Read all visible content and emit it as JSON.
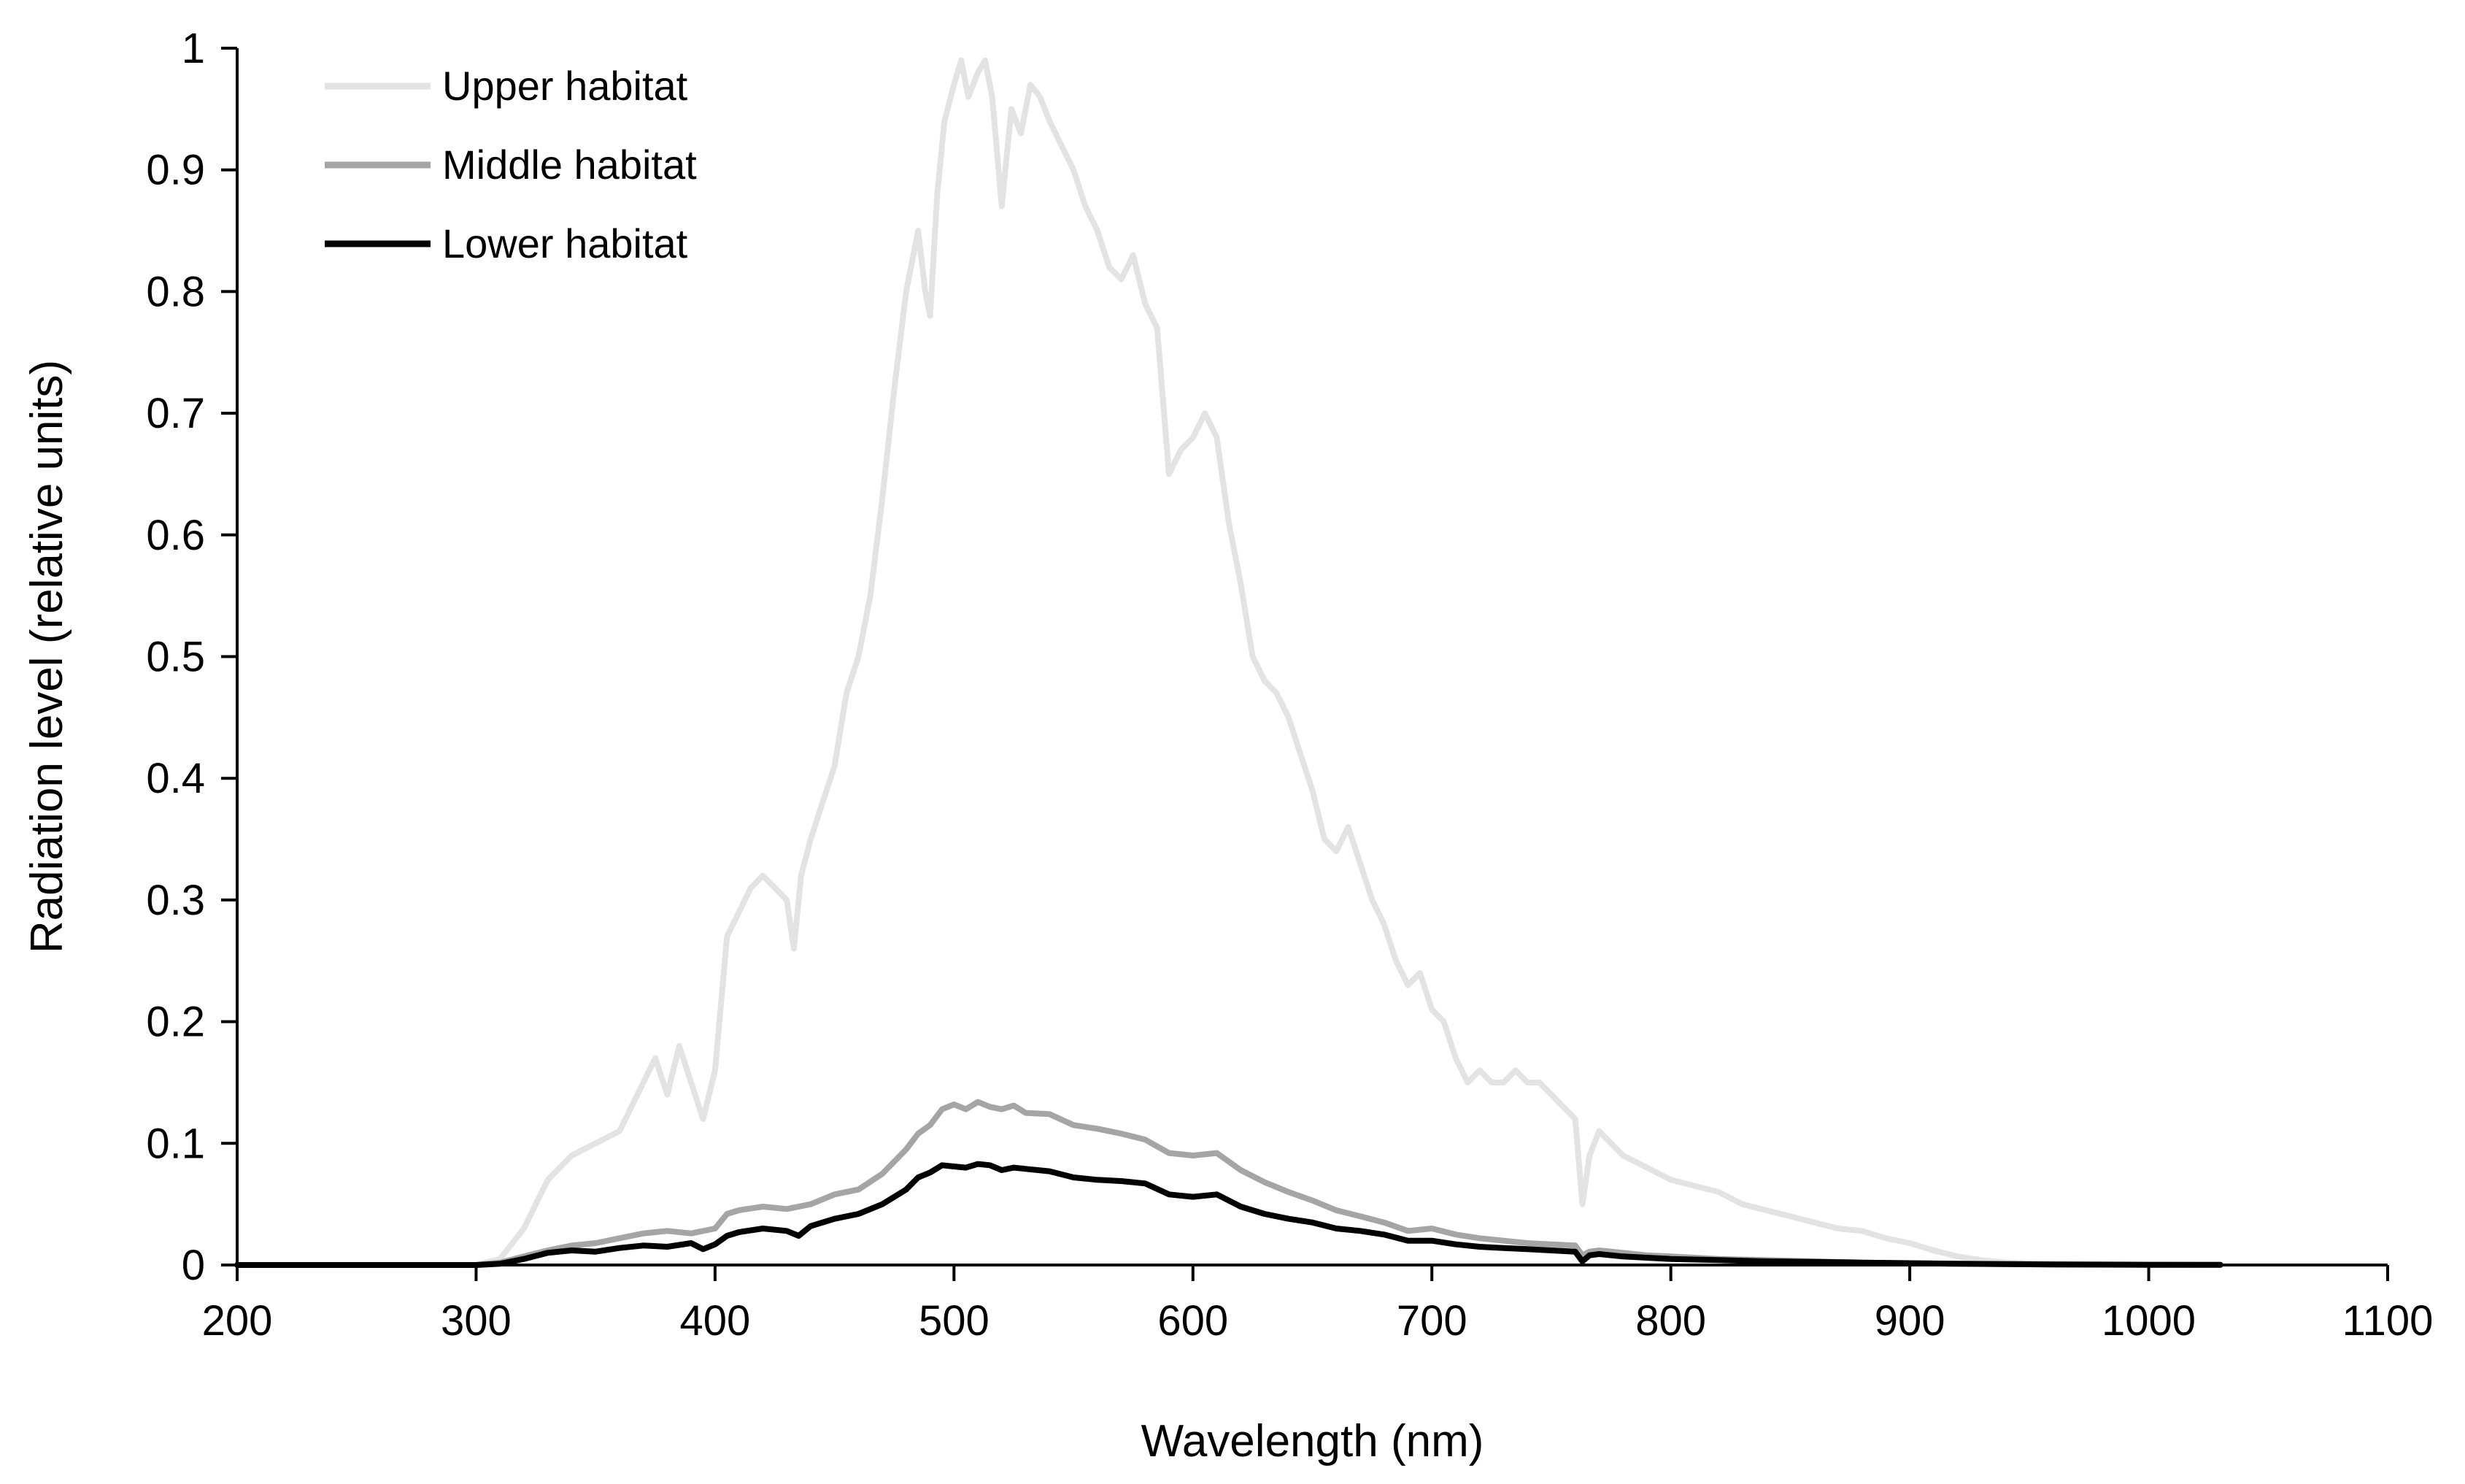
{
  "chart_data": {
    "type": "line",
    "title": "",
    "xlabel": "Wavelength (nm)",
    "ylabel": "Radiation level (relative units)",
    "xlim": [
      200,
      1100
    ],
    "ylim": [
      0,
      1
    ],
    "x_ticks": [
      200,
      300,
      400,
      500,
      600,
      700,
      800,
      900,
      1000,
      1100
    ],
    "y_ticks": [
      0,
      0.1,
      0.2,
      0.3,
      0.4,
      0.5,
      0.6,
      0.7,
      0.8,
      0.9,
      1
    ],
    "x_tick_labels": [
      "200",
      "300",
      "400",
      "500",
      "600",
      "700",
      "800",
      "900",
      "1000",
      "1100"
    ],
    "y_tick_labels": [
      "0",
      "0.1",
      "0.2",
      "0.3",
      "0.4",
      "0.5",
      "0.6",
      "0.7",
      "0.8",
      "0.9",
      "1"
    ],
    "grid": false,
    "legend_position": "top-left",
    "series": [
      {
        "name": "Upper habitat",
        "color": "#e3e3e3",
        "x": [
          200,
          300,
          310,
          320,
          330,
          340,
          350,
          360,
          370,
          375,
          380,
          385,
          390,
          395,
          400,
          405,
          410,
          415,
          420,
          425,
          430,
          433,
          436,
          440,
          445,
          450,
          455,
          460,
          465,
          470,
          475,
          480,
          485,
          488,
          490,
          493,
          496,
          500,
          503,
          506,
          510,
          513,
          516,
          520,
          524,
          528,
          532,
          536,
          540,
          545,
          550,
          555,
          560,
          565,
          570,
          575,
          580,
          585,
          590,
          595,
          600,
          605,
          610,
          615,
          620,
          625,
          630,
          635,
          640,
          645,
          650,
          655,
          660,
          665,
          670,
          675,
          680,
          685,
          690,
          695,
          700,
          705,
          710,
          715,
          720,
          725,
          730,
          735,
          740,
          745,
          750,
          755,
          760,
          763,
          766,
          770,
          775,
          780,
          790,
          800,
          810,
          820,
          830,
          840,
          850,
          860,
          870,
          880,
          890,
          900,
          910,
          920,
          930,
          940,
          960,
          1000,
          1030
        ],
        "y": [
          0,
          0,
          0.005,
          0.03,
          0.07,
          0.09,
          0.1,
          0.11,
          0.15,
          0.17,
          0.14,
          0.18,
          0.15,
          0.12,
          0.16,
          0.27,
          0.29,
          0.31,
          0.32,
          0.31,
          0.3,
          0.26,
          0.32,
          0.35,
          0.38,
          0.41,
          0.47,
          0.5,
          0.55,
          0.63,
          0.72,
          0.8,
          0.85,
          0.8,
          0.78,
          0.88,
          0.94,
          0.97,
          0.99,
          0.96,
          0.98,
          0.99,
          0.96,
          0.87,
          0.95,
          0.93,
          0.97,
          0.96,
          0.94,
          0.92,
          0.9,
          0.87,
          0.85,
          0.82,
          0.81,
          0.83,
          0.79,
          0.77,
          0.65,
          0.67,
          0.68,
          0.7,
          0.68,
          0.61,
          0.56,
          0.5,
          0.48,
          0.47,
          0.45,
          0.42,
          0.39,
          0.35,
          0.34,
          0.36,
          0.33,
          0.3,
          0.28,
          0.25,
          0.23,
          0.24,
          0.21,
          0.2,
          0.17,
          0.15,
          0.16,
          0.15,
          0.15,
          0.16,
          0.15,
          0.15,
          0.14,
          0.13,
          0.12,
          0.05,
          0.09,
          0.11,
          0.1,
          0.09,
          0.08,
          0.07,
          0.065,
          0.06,
          0.05,
          0.045,
          0.04,
          0.035,
          0.03,
          0.028,
          0.022,
          0.018,
          0.012,
          0.007,
          0.004,
          0.002,
          0.001,
          0.0005,
          0.0003
        ]
      },
      {
        "name": "Middle habitat",
        "color": "#a5a5a5",
        "x": [
          200,
          300,
          310,
          320,
          330,
          340,
          350,
          360,
          370,
          380,
          390,
          400,
          405,
          410,
          420,
          430,
          440,
          450,
          460,
          470,
          480,
          485,
          490,
          495,
          500,
          505,
          510,
          515,
          520,
          525,
          530,
          540,
          550,
          560,
          570,
          580,
          590,
          600,
          610,
          620,
          630,
          640,
          650,
          660,
          670,
          680,
          690,
          700,
          710,
          720,
          730,
          740,
          750,
          760,
          763,
          766,
          770,
          780,
          790,
          800,
          820,
          840,
          860,
          880,
          900,
          920,
          940,
          960,
          1000,
          1030
        ],
        "y": [
          0,
          0,
          0.002,
          0.007,
          0.012,
          0.016,
          0.018,
          0.022,
          0.026,
          0.028,
          0.026,
          0.03,
          0.042,
          0.045,
          0.048,
          0.046,
          0.05,
          0.058,
          0.062,
          0.075,
          0.095,
          0.108,
          0.115,
          0.128,
          0.132,
          0.128,
          0.134,
          0.13,
          0.128,
          0.131,
          0.125,
          0.124,
          0.115,
          0.112,
          0.108,
          0.103,
          0.092,
          0.09,
          0.092,
          0.078,
          0.068,
          0.06,
          0.053,
          0.045,
          0.04,
          0.035,
          0.028,
          0.03,
          0.025,
          0.022,
          0.02,
          0.018,
          0.017,
          0.016,
          0.008,
          0.011,
          0.012,
          0.01,
          0.008,
          0.007,
          0.005,
          0.004,
          0.003,
          0.002,
          0.0015,
          0.001,
          0.0008,
          0.0005,
          0.0003,
          0.0002
        ]
      },
      {
        "name": "Lower habitat",
        "color": "#000000",
        "x": [
          200,
          300,
          310,
          320,
          330,
          340,
          350,
          360,
          370,
          380,
          390,
          395,
          400,
          405,
          410,
          420,
          430,
          435,
          440,
          450,
          460,
          470,
          480,
          485,
          490,
          495,
          500,
          505,
          510,
          515,
          520,
          525,
          530,
          540,
          550,
          560,
          570,
          580,
          590,
          600,
          610,
          620,
          630,
          640,
          650,
          660,
          670,
          680,
          690,
          700,
          710,
          720,
          730,
          740,
          750,
          760,
          763,
          766,
          770,
          780,
          790,
          800,
          820,
          840,
          860,
          880,
          900,
          920,
          940,
          960,
          1000,
          1030
        ],
        "y": [
          0,
          0,
          0.001,
          0.005,
          0.01,
          0.012,
          0.011,
          0.014,
          0.016,
          0.015,
          0.018,
          0.013,
          0.017,
          0.024,
          0.027,
          0.03,
          0.028,
          0.024,
          0.032,
          0.038,
          0.042,
          0.05,
          0.062,
          0.072,
          0.076,
          0.082,
          0.081,
          0.08,
          0.083,
          0.082,
          0.078,
          0.08,
          0.079,
          0.077,
          0.072,
          0.07,
          0.069,
          0.067,
          0.058,
          0.056,
          0.058,
          0.048,
          0.042,
          0.038,
          0.035,
          0.03,
          0.028,
          0.025,
          0.02,
          0.02,
          0.017,
          0.015,
          0.014,
          0.013,
          0.012,
          0.011,
          0.003,
          0.008,
          0.009,
          0.007,
          0.006,
          0.005,
          0.004,
          0.003,
          0.0025,
          0.002,
          0.0015,
          0.001,
          0.0007,
          0.0004,
          0.0002,
          0.0001
        ]
      }
    ]
  }
}
